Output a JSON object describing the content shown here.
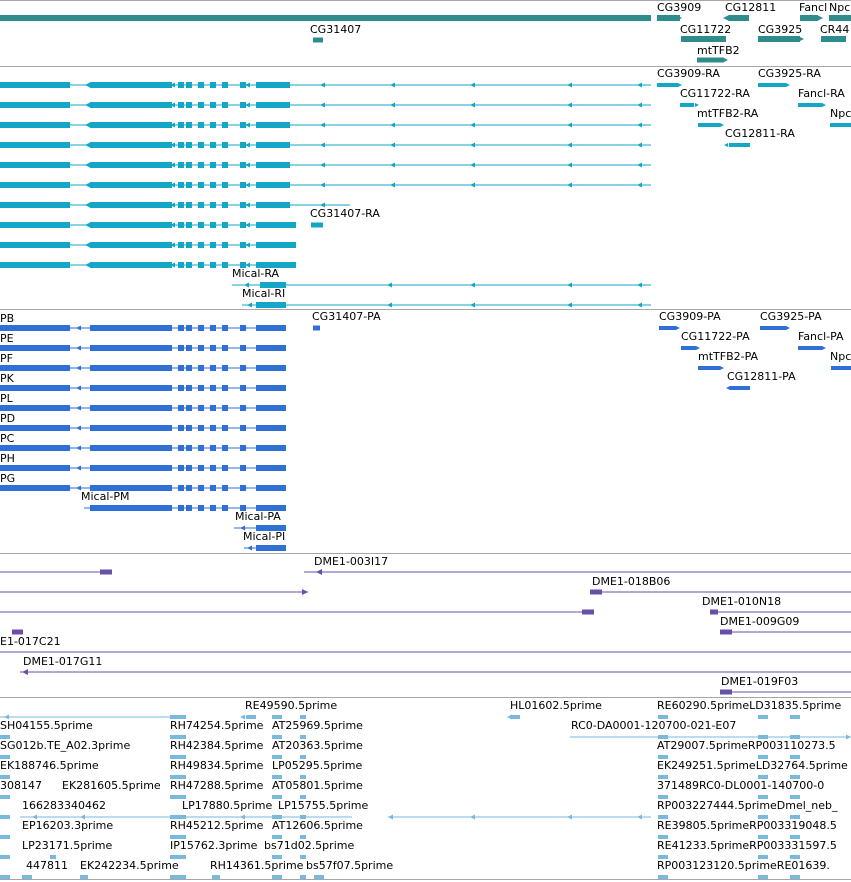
{
  "colors": {
    "gene": "#2f8c8c",
    "mrna": "#14a6c6",
    "cds": "#2f6fd6",
    "cdna": "#6a4fa8",
    "est": "#7ab8dd",
    "separator": "#a7a7a7"
  },
  "tracks": {
    "gene": [
      {
        "key": "g1",
        "label": "CG31407",
        "strand": "minus"
      },
      {
        "key": "g2",
        "label": "CG3909",
        "strand": "plus"
      },
      {
        "key": "g3",
        "label": "CG12811",
        "strand": "minus"
      },
      {
        "key": "g4",
        "label": "Fancl",
        "strand": "plus"
      },
      {
        "key": "g5",
        "label": "Npc",
        "strand": "plus"
      },
      {
        "key": "g6",
        "label": "CG11722",
        "strand": "plus"
      },
      {
        "key": "g7",
        "label": "CG3925",
        "strand": "plus"
      },
      {
        "key": "g8",
        "label": "CR44",
        "strand": "plus"
      },
      {
        "key": "g9",
        "label": "mtTFB2",
        "strand": "plus"
      }
    ],
    "mrna": [
      {
        "key": "m1",
        "label": "CG3909-RA"
      },
      {
        "key": "m2",
        "label": "CG3925-RA"
      },
      {
        "key": "m3",
        "label": "CG11722-RA"
      },
      {
        "key": "m4",
        "label": "Fancl-RA"
      },
      {
        "key": "m5",
        "label": "mtTFB2-RA"
      },
      {
        "key": "m6",
        "label": "Npc"
      },
      {
        "key": "m7",
        "label": "CG12811-RA"
      },
      {
        "key": "m8",
        "label": "CG31407-RA"
      },
      {
        "key": "m9",
        "label": "Mical-RA"
      },
      {
        "key": "m10",
        "label": "Mical-RI"
      }
    ],
    "cds": [
      {
        "key": "c1",
        "label": "PB"
      },
      {
        "key": "c2",
        "label": "PE"
      },
      {
        "key": "c3",
        "label": "PF"
      },
      {
        "key": "c4",
        "label": "PK"
      },
      {
        "key": "c5",
        "label": "PL"
      },
      {
        "key": "c6",
        "label": "PD"
      },
      {
        "key": "c7",
        "label": "PC"
      },
      {
        "key": "c8",
        "label": "PH"
      },
      {
        "key": "c9",
        "label": "PG"
      },
      {
        "key": "c10",
        "label": "Mical-PM"
      },
      {
        "key": "c11",
        "label": "Mical-PA"
      },
      {
        "key": "c12",
        "label": "Mical-PI"
      },
      {
        "key": "c13",
        "label": "CG31407-PA"
      },
      {
        "key": "c14",
        "label": "CG3909-PA"
      },
      {
        "key": "c15",
        "label": "CG3925-PA"
      },
      {
        "key": "c16",
        "label": "CG11722-PA"
      },
      {
        "key": "c17",
        "label": "Fancl-PA"
      },
      {
        "key": "c18",
        "label": "mtTFB2-PA"
      },
      {
        "key": "c19",
        "label": "Npc"
      },
      {
        "key": "c20",
        "label": "CG12811-PA"
      }
    ],
    "cdna": [
      {
        "key": "d1",
        "label": "DME1-003I17"
      },
      {
        "key": "d2",
        "label": "DME1-018B06"
      },
      {
        "key": "d3",
        "label": "DME1-010N18"
      },
      {
        "key": "d4",
        "label": "DME1-009G09"
      },
      {
        "key": "d5",
        "label": "E1-017C21"
      },
      {
        "key": "d6",
        "label": "DME1-017G11"
      },
      {
        "key": "d7",
        "label": "DME1-019F03"
      }
    ],
    "est": [
      {
        "key": "e1",
        "label": "RE49590.5prime"
      },
      {
        "key": "e2",
        "label": "HL01602.5prime"
      },
      {
        "key": "e3",
        "label": "RE60290.5primeLD31835.5prime"
      },
      {
        "key": "e4",
        "label": "SH04155.5prime"
      },
      {
        "key": "e5",
        "label": "RH74254.5prime"
      },
      {
        "key": "e6",
        "label": "AT25969.5prime"
      },
      {
        "key": "e7",
        "label": "RC0-DA0001-120700-021-E07"
      },
      {
        "key": "e8",
        "label": "SG012b.TE_A02.3prime"
      },
      {
        "key": "e9",
        "label": "RH42384.5prime"
      },
      {
        "key": "e10",
        "label": "AT20363.5prime"
      },
      {
        "key": "e11",
        "label": "AT29007.5primeRP003110273.5"
      },
      {
        "key": "e12",
        "label": "EK188746.5prime"
      },
      {
        "key": "e13",
        "label": "RH49834.5prime"
      },
      {
        "key": "e14",
        "label": "LP05295.5prime"
      },
      {
        "key": "e15",
        "label": "EK249251.5primeLD32764.5prime"
      },
      {
        "key": "e16",
        "label": "308147"
      },
      {
        "key": "e17",
        "label": "EK281605.5prime"
      },
      {
        "key": "e18",
        "label": "RH47288.5prime"
      },
      {
        "key": "e19",
        "label": "AT05801.5prime"
      },
      {
        "key": "e20",
        "label": "371489RC0-DL0001-140700-0"
      },
      {
        "key": "e21",
        "label": "166283340462"
      },
      {
        "key": "e22",
        "label": "LP17880.5prime"
      },
      {
        "key": "e23",
        "label": "LP15755.5prime"
      },
      {
        "key": "e24",
        "label": "RP003227444.5primeDmel_neb_"
      },
      {
        "key": "e25",
        "label": "EP16203.3prime"
      },
      {
        "key": "e26",
        "label": "RH45212.5prime"
      },
      {
        "key": "e27",
        "label": "AT12606.5prime"
      },
      {
        "key": "e28",
        "label": "RE39805.5primeRP003319048.5"
      },
      {
        "key": "e29",
        "label": "LP23171.5prime"
      },
      {
        "key": "e30",
        "label": "IP15762.3prime"
      },
      {
        "key": "e31",
        "label": "bs71d02.5prime"
      },
      {
        "key": "e32",
        "label": "RE41233.5primeRP003331597.5"
      },
      {
        "key": "e33",
        "label": "447811"
      },
      {
        "key": "e34",
        "label": "EK242234.5prime"
      },
      {
        "key": "e35",
        "label": "RH14361.5prime"
      },
      {
        "key": "e36",
        "label": "bs57f07.5prime"
      },
      {
        "key": "e37",
        "label": "RP003123120.5primeRE01639."
      }
    ]
  }
}
